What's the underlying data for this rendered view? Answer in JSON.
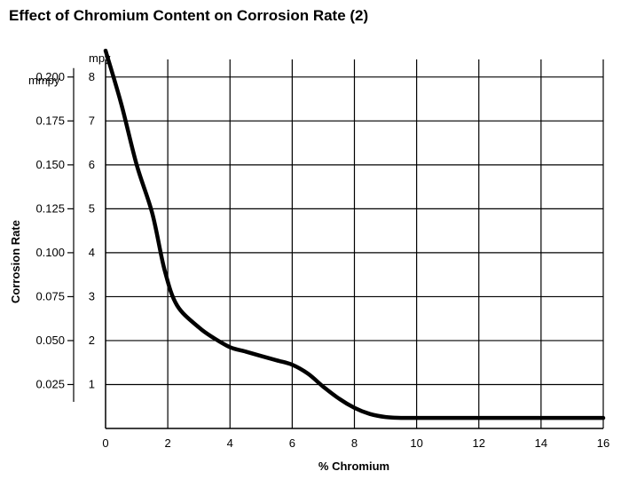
{
  "chart_data": {
    "type": "line",
    "title": "Effect of Chromium Content on Corrosion Rate (2)",
    "xlabel": "% Chromium",
    "ylabel": "Corrosion Rate",
    "y_unit_primary": "mpy",
    "y_unit_secondary": "mmpy",
    "xlim": [
      0,
      16
    ],
    "ylim_mpy": [
      0,
      8.4
    ],
    "grid": true,
    "x_ticks": [
      "0",
      "2",
      "4",
      "6",
      "8",
      "10",
      "12",
      "14",
      "16"
    ],
    "y_ticks_mpy": [
      "1",
      "2",
      "3",
      "4",
      "5",
      "6",
      "7",
      "8"
    ],
    "y_ticks_mmpy": [
      "0.025",
      "0.050",
      "0.075",
      "0.100",
      "0.125",
      "0.150",
      "0.175",
      "0.200"
    ],
    "series": [
      {
        "x": [
          0,
          0.5,
          1,
          1.5,
          1.9,
          2.3,
          3,
          3.5,
          4,
          4.5,
          5,
          5.5,
          6,
          6.5,
          7,
          7.5,
          8,
          8.5,
          9,
          9.5,
          10,
          11,
          12,
          13,
          14,
          15,
          16
        ],
        "y": [
          8.6,
          7.4,
          6.0,
          4.9,
          3.6,
          2.8,
          2.3,
          2.05,
          1.85,
          1.75,
          1.65,
          1.55,
          1.45,
          1.25,
          0.95,
          0.68,
          0.47,
          0.33,
          0.26,
          0.24,
          0.24,
          0.24,
          0.24,
          0.24,
          0.24,
          0.24,
          0.24
        ]
      }
    ]
  }
}
